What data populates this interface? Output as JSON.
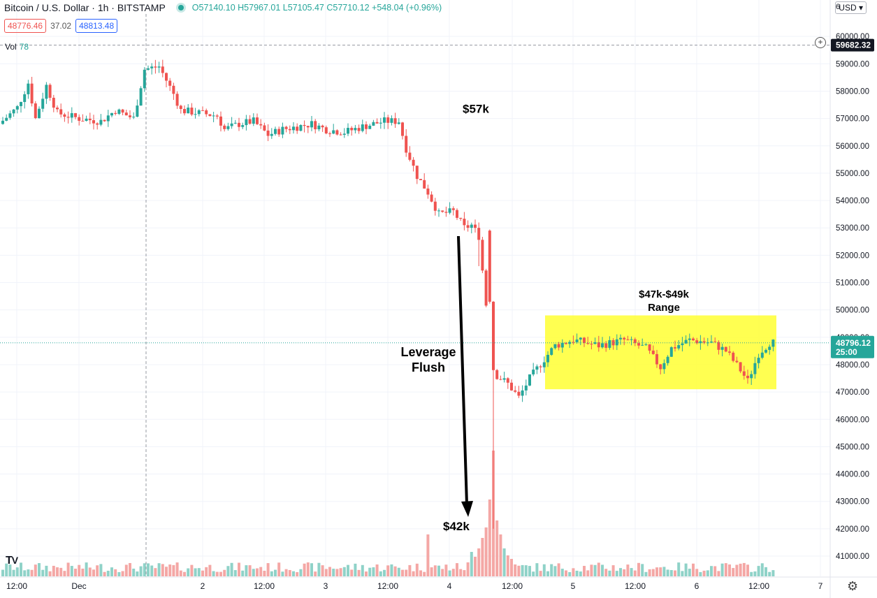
{
  "header": {
    "title": "Bitcoin / U.S. Dollar · 1h · BITSTAMP",
    "open": "O57140.10",
    "high": "H57967.01",
    "low": "L57105.47",
    "close": "C57710.12",
    "change": "+548.04 (+0.96%)",
    "bid": "48776.46",
    "spread": "37.02",
    "ask": "48813.48",
    "vol_label": "Vol",
    "vol_value": "78",
    "currency": "USD",
    "currency_caret": "▾",
    "top_tick": "6"
  },
  "chart_data": {
    "type": "candlestick",
    "title": "Bitcoin / U.S. Dollar · 1h · BITSTAMP",
    "ylim": [
      40000,
      61000
    ],
    "y_ticks": [
      "41000.00",
      "42000.00",
      "43000.00",
      "44000.00",
      "45000.00",
      "46000.00",
      "47000.00",
      "48000.00",
      "49000.00",
      "50000.00",
      "51000.00",
      "52000.00",
      "53000.00",
      "54000.00",
      "55000.00",
      "56000.00",
      "57000.00",
      "58000.00",
      "59000.00",
      "60000.00"
    ],
    "x_ticks": [
      "12:00",
      "Dec",
      "2",
      "12:00",
      "3",
      "12:00",
      "4",
      "12:00",
      "5",
      "12:00",
      "6",
      "12:00",
      "7"
    ],
    "crosshair_price": "59682.32",
    "last_price": "48796.12",
    "countdown": "25:00",
    "key_points": [
      {
        "label": "$57k",
        "price": 57000
      },
      {
        "label": "$42k",
        "price": 42000
      }
    ],
    "range": {
      "low": 47000,
      "high": 49000
    },
    "annotations": {
      "high_label": "$57k",
      "low_label": "$42k",
      "flush_line1": "Leverage",
      "flush_line2": "Flush",
      "range_line1": "$47k-$49k",
      "range_line2": "Range"
    },
    "colors": {
      "up": "#26a69a",
      "down": "#ef5350",
      "up_vol": "#8fd2c8",
      "down_vol": "#f4a7a5",
      "range_box": "#ffff33"
    }
  }
}
